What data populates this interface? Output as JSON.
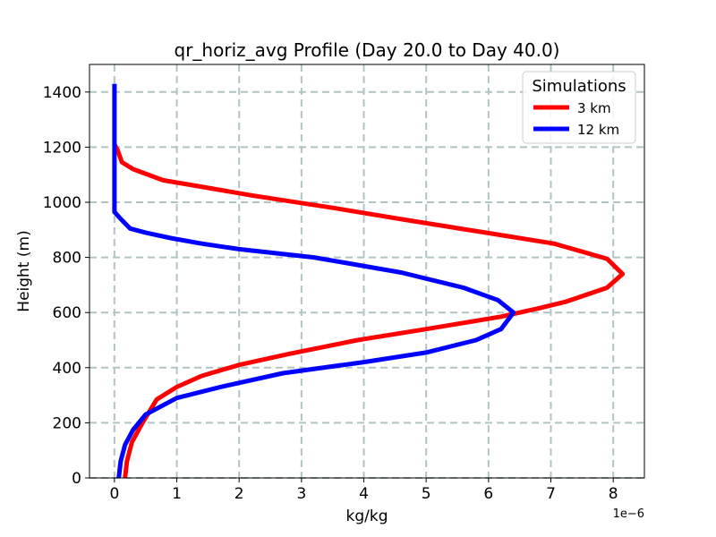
{
  "chart_data": {
    "type": "line",
    "title": "qr_horiz_avg Profile (Day 20.0 to Day 40.0)",
    "xlabel": "kg/kg",
    "ylabel": "Height (m)",
    "x_offset_label": "1e−6",
    "xlim": [
      -0.4,
      8.5
    ],
    "ylim": [
      0,
      1500
    ],
    "x_ticks": [
      0,
      1,
      2,
      3,
      4,
      5,
      6,
      7,
      8
    ],
    "x_tick_labels": [
      "0",
      "1",
      "2",
      "3",
      "4",
      "5",
      "6",
      "7",
      "8"
    ],
    "y_ticks": [
      0,
      200,
      400,
      600,
      800,
      1000,
      1200,
      1400
    ],
    "y_tick_labels": [
      "0",
      "200",
      "400",
      "600",
      "800",
      "1000",
      "1200",
      "1400"
    ],
    "grid": true,
    "legend": {
      "title": "Simulations",
      "position": "top-right"
    },
    "series": [
      {
        "name": "3 km",
        "color": "#ff0000",
        "points": [
          [
            0.17,
            0
          ],
          [
            0.2,
            60
          ],
          [
            0.28,
            130
          ],
          [
            0.45,
            200
          ],
          [
            0.68,
            285
          ],
          [
            1.0,
            330
          ],
          [
            1.4,
            370
          ],
          [
            2.0,
            410
          ],
          [
            2.8,
            450
          ],
          [
            3.9,
            500
          ],
          [
            5.0,
            540
          ],
          [
            6.2,
            585
          ],
          [
            6.8,
            615
          ],
          [
            7.25,
            640
          ],
          [
            7.9,
            690
          ],
          [
            8.15,
            740
          ],
          [
            7.9,
            795
          ],
          [
            7.05,
            850
          ],
          [
            5.95,
            890
          ],
          [
            4.7,
            935
          ],
          [
            3.5,
            980
          ],
          [
            2.2,
            1025
          ],
          [
            1.3,
            1060
          ],
          [
            0.78,
            1080
          ],
          [
            0.3,
            1120
          ],
          [
            0.12,
            1145
          ],
          [
            0.05,
            1190
          ],
          [
            0.0,
            1210
          ]
        ]
      },
      {
        "name": "12 km",
        "color": "#0000ff",
        "points": [
          [
            0.07,
            0
          ],
          [
            0.1,
            60
          ],
          [
            0.17,
            120
          ],
          [
            0.3,
            175
          ],
          [
            0.5,
            230
          ],
          [
            0.75,
            260
          ],
          [
            1.0,
            290
          ],
          [
            1.7,
            330
          ],
          [
            2.7,
            380
          ],
          [
            4.0,
            420
          ],
          [
            5.0,
            455
          ],
          [
            5.8,
            500
          ],
          [
            6.2,
            540
          ],
          [
            6.4,
            600
          ],
          [
            6.15,
            645
          ],
          [
            5.6,
            690
          ],
          [
            4.6,
            745
          ],
          [
            3.2,
            800
          ],
          [
            2.0,
            830
          ],
          [
            1.4,
            850
          ],
          [
            0.9,
            870
          ],
          [
            0.5,
            890
          ],
          [
            0.25,
            905
          ],
          [
            0.1,
            940
          ],
          [
            0.0,
            965
          ],
          [
            0.0,
            1000
          ],
          [
            0.0,
            1200
          ],
          [
            0.0,
            1430
          ]
        ]
      }
    ]
  }
}
